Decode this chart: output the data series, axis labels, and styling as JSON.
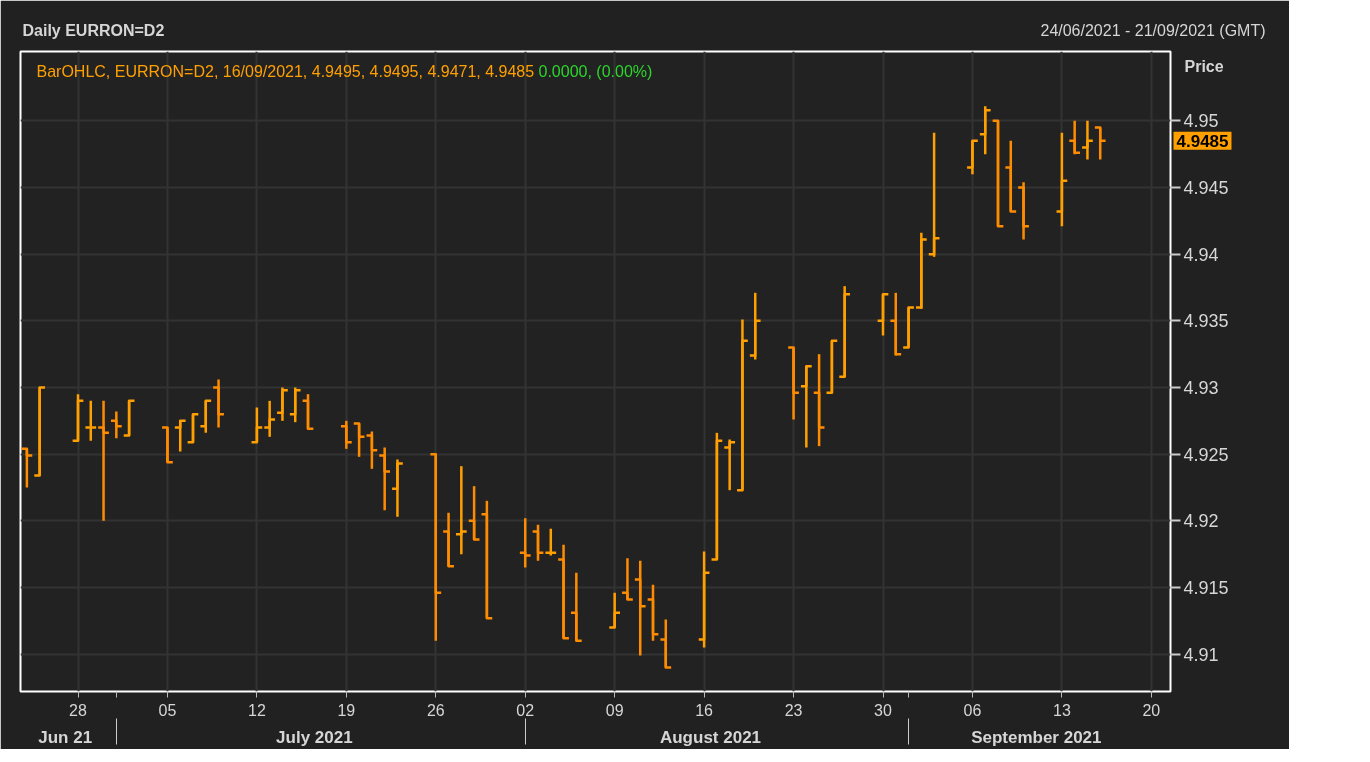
{
  "chart_data": {
    "type": "candlestick",
    "title": "Daily EURRON=D2",
    "subtitle": "24/06/2021 - 21/09/2021 (GMT)",
    "ylabel": "Price",
    "annotations": [
      "BarOHLC, EURRON=D2, 16/09/2021, 4.9495, 4.9495, 4.9471, 4.9485",
      "0.0000, (0.00%)",
      "4.9485"
    ],
    "x": [
      "2021-06-24",
      "2021-06-25",
      "2021-06-28",
      "2021-06-29",
      "2021-06-30",
      "2021-07-01",
      "2021-07-02",
      "2021-07-05",
      "2021-07-06",
      "2021-07-07",
      "2021-07-08",
      "2021-07-09",
      "2021-07-12",
      "2021-07-13",
      "2021-07-14",
      "2021-07-15",
      "2021-07-16",
      "2021-07-19",
      "2021-07-20",
      "2021-07-21",
      "2021-07-22",
      "2021-07-23",
      "2021-07-26",
      "2021-07-27",
      "2021-07-28",
      "2021-07-29",
      "2021-07-30",
      "2021-08-02",
      "2021-08-03",
      "2021-08-04",
      "2021-08-05",
      "2021-08-06",
      "2021-08-09",
      "2021-08-10",
      "2021-08-11",
      "2021-08-12",
      "2021-08-13",
      "2021-08-16",
      "2021-08-17",
      "2021-08-18",
      "2021-08-19",
      "2021-08-20",
      "2021-08-23",
      "2021-08-24",
      "2021-08-25",
      "2021-08-26",
      "2021-08-27",
      "2021-08-30",
      "2021-08-31",
      "2021-09-01",
      "2021-09-02",
      "2021-09-03",
      "2021-09-06",
      "2021-09-07",
      "2021-09-08",
      "2021-09-09",
      "2021-09-10",
      "2021-09-13",
      "2021-09-14",
      "2021-09-15",
      "2021-09-16"
    ],
    "series": [
      {
        "color": "#ffa000",
        "colors": [
          "#ff8c00",
          "#ffa000",
          "#ffa000",
          "#ffa000",
          "#ff8c00",
          "#ff8c00",
          "#ffa000",
          "#ff8c00",
          "#ffa000",
          "#ffa000",
          "#ffa000",
          "#ff8c00",
          "#ffa000",
          "#ffa000",
          "#ffa000",
          "#ffa000",
          "#ff8c00",
          "#ff8c00",
          "#ff8c00",
          "#ff8c00",
          "#ff8c00",
          "#ffa000",
          "#ff8c00",
          "#ff8c00",
          "#ffa000",
          "#ff8c00",
          "#ff8c00",
          "#ff8c00",
          "#ff8c00",
          "#ffa000",
          "#ff8c00",
          "#ff8c00",
          "#ffa000",
          "#ff8c00",
          "#ff8c00",
          "#ff8c00",
          "#ff8c00",
          "#ffa000",
          "#ffa000",
          "#ffa000",
          "#ffa000",
          "#ffa000",
          "#ff8c00",
          "#ffa000",
          "#ff8c00",
          "#ffa000",
          "#ffa000",
          "#ffa000",
          "#ff8c00",
          "#ffa000",
          "#ffa000",
          "#ffa000",
          "#ffa000",
          "#ffa000",
          "#ff8c00",
          "#ff8c00",
          "#ff8c00",
          "#ffa000",
          "#ff8c00",
          "#ffa000",
          "#ff8c00"
        ],
        "ohlc": [
          [
            4.9254,
            4.9254,
            4.9225,
            4.9249
          ],
          [
            4.9234,
            4.93,
            4.9234,
            4.93
          ],
          [
            4.926,
            4.9295,
            4.926,
            4.929
          ],
          [
            4.927,
            4.929,
            4.926,
            4.927
          ],
          [
            4.927,
            4.929,
            4.92,
            4.9266
          ],
          [
            4.9275,
            4.9282,
            4.9262,
            4.9271
          ],
          [
            4.9264,
            4.929,
            4.9264,
            4.929
          ],
          [
            4.927,
            4.927,
            4.9244,
            4.9244
          ],
          [
            4.927,
            4.9275,
            4.9252,
            4.9275
          ],
          [
            4.9259,
            4.928,
            4.9259,
            4.928
          ],
          [
            4.9271,
            4.929,
            4.9266,
            4.929
          ],
          [
            4.93,
            4.9306,
            4.927,
            4.928
          ],
          [
            4.9259,
            4.9285,
            4.9259,
            4.927
          ],
          [
            4.927,
            4.929,
            4.9263,
            4.9276
          ],
          [
            4.9281,
            4.93,
            4.9275,
            4.9298
          ],
          [
            4.928,
            4.93,
            4.9274,
            4.9298
          ],
          [
            4.929,
            4.9295,
            4.9269,
            4.9269
          ],
          [
            4.9271,
            4.9275,
            4.9254,
            4.9259
          ],
          [
            4.9273,
            4.9273,
            4.9248,
            4.9263
          ],
          [
            4.9264,
            4.9267,
            4.9239,
            4.9253
          ],
          [
            4.9249,
            4.9255,
            4.9208,
            4.9237
          ],
          [
            4.9224,
            4.9246,
            4.9203,
            4.9243
          ],
          [
            4.925,
            4.925,
            4.911,
            4.9146
          ],
          [
            4.9192,
            4.9206,
            4.9166,
            4.9166
          ],
          [
            4.919,
            4.9241,
            4.9175,
            4.9192
          ],
          [
            4.92,
            4.9226,
            4.9186,
            4.9186
          ],
          [
            4.9205,
            4.9215,
            4.9127,
            4.9127
          ],
          [
            4.9176,
            4.9202,
            4.9165,
            4.9174
          ],
          [
            4.9192,
            4.9197,
            4.917,
            4.9176
          ],
          [
            4.9176,
            4.9194,
            4.9174,
            4.9176
          ],
          [
            4.9171,
            4.9182,
            4.9112,
            4.9112
          ],
          [
            4.9131,
            4.9161,
            4.911,
            4.911
          ],
          [
            4.912,
            4.9146,
            4.912,
            4.9131
          ],
          [
            4.9146,
            4.9172,
            4.9141,
            4.9141
          ],
          [
            4.9156,
            4.917,
            4.9099,
            4.9136
          ],
          [
            4.9141,
            4.9152,
            4.911,
            4.9115
          ],
          [
            4.9111,
            4.9126,
            4.909,
            4.909
          ],
          [
            4.9111,
            4.9177,
            4.9105,
            4.9161
          ],
          [
            4.9171,
            4.9266,
            4.9171,
            4.926
          ],
          [
            4.9255,
            4.9261,
            4.9223,
            4.9259
          ],
          [
            4.9223,
            4.9351,
            4.9223,
            4.9335
          ],
          [
            4.9324,
            4.9371,
            4.9321,
            4.935
          ],
          [
            4.933,
            4.933,
            4.9276,
            4.9296
          ],
          [
            4.9301,
            4.9316,
            4.9255,
            4.9316
          ],
          [
            4.9296,
            4.9325,
            4.9256,
            4.927
          ],
          [
            4.9296,
            4.9335,
            4.9296,
            4.9335
          ],
          [
            4.9308,
            4.9376,
            4.9308,
            4.937
          ],
          [
            4.935,
            4.937,
            4.9339,
            4.937
          ],
          [
            4.935,
            4.9371,
            4.9324,
            4.9325
          ],
          [
            4.933,
            4.936,
            4.933,
            4.936
          ],
          [
            4.936,
            4.9416,
            4.9359,
            4.9411
          ],
          [
            4.94,
            4.9491,
            4.9398,
            4.9412
          ],
          [
            4.9465,
            4.9485,
            4.946,
            4.9485
          ],
          [
            4.949,
            4.9511,
            4.9475,
            4.9508
          ],
          [
            4.95,
            4.95,
            4.9421,
            4.9421
          ],
          [
            4.9465,
            4.9485,
            4.9432,
            4.9432
          ],
          [
            4.945,
            4.9454,
            4.9411,
            4.9421
          ],
          [
            4.9432,
            4.9491,
            4.9421,
            4.9455
          ],
          [
            4.9485,
            4.95,
            4.9475,
            4.9476
          ],
          [
            4.948,
            4.95,
            4.9471,
            4.9485
          ],
          [
            4.9495,
            4.9495,
            4.9471,
            4.9485
          ]
        ]
      }
    ],
    "xlim": [
      "2021-06-23T12:00",
      "2021-09-21T12:00"
    ],
    "xticks": [
      {
        "value": "2021-06-28",
        "label": "28"
      },
      {
        "value": "2021-07-01",
        "label": null
      },
      {
        "value": "2021-07-05",
        "label": "05"
      },
      {
        "value": "2021-07-12",
        "label": "12"
      },
      {
        "value": "2021-07-19",
        "label": "19"
      },
      {
        "value": "2021-07-26",
        "label": "26"
      },
      {
        "value": "2021-08-02",
        "label": "02"
      },
      {
        "value": "2021-08-09",
        "label": "09"
      },
      {
        "value": "2021-08-16",
        "label": "16"
      },
      {
        "value": "2021-08-23",
        "label": "23"
      },
      {
        "value": "2021-08-30",
        "label": "30"
      },
      {
        "value": "2021-09-01",
        "label": null
      },
      {
        "value": "2021-09-06",
        "label": "06"
      },
      {
        "value": "2021-09-13",
        "label": "13"
      },
      {
        "value": "2021-09-20",
        "label": "20"
      }
    ],
    "x2lim": [
      "2021-06-23T12:00",
      "2021-09-21T12:00"
    ],
    "x2ticks": [
      {
        "value": "2021-06-27",
        "label": "Jun 21"
      },
      {
        "value": "2021-07-01",
        "label": null
      },
      {
        "value": "2021-07-16T12:00",
        "label": "July 2021"
      },
      {
        "value": "2021-08-02",
        "label": null
      },
      {
        "value": "2021-08-16T12:00",
        "label": "August 2021"
      },
      {
        "value": "2021-09-01",
        "label": null
      },
      {
        "value": "2021-09-11",
        "label": "September 2021"
      }
    ],
    "ylim": [
      4.9072,
      4.9552
    ],
    "yticks": [
      4.91,
      4.915,
      4.92,
      4.925,
      4.93,
      4.935,
      4.94,
      4.945,
      4.95
    ],
    "grid": true
  }
}
